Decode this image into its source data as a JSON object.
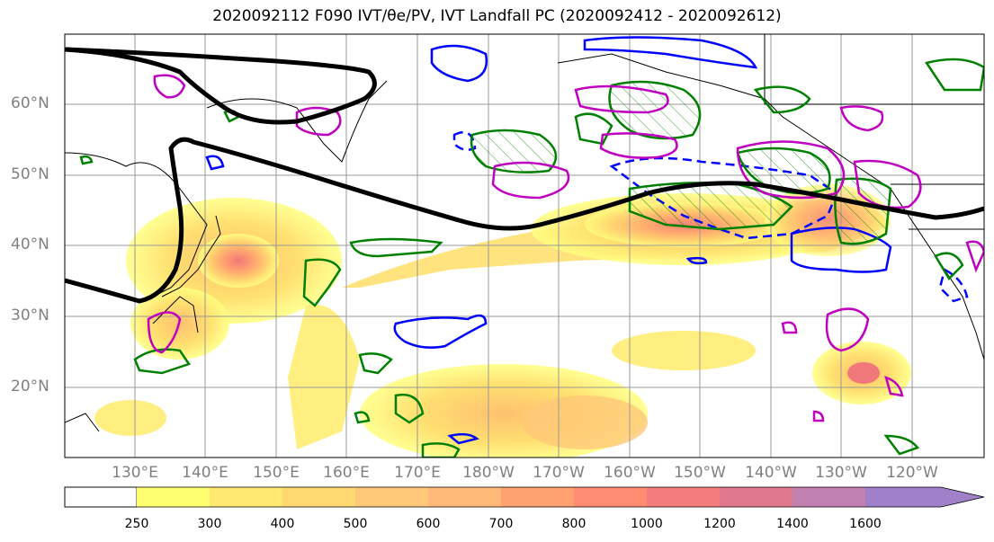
{
  "title": "2020092112 F090 IVT/θe/PV, IVT Landfall PC (2020092412 - 2020092612)",
  "lat_labels": [
    "60°N",
    "50°N",
    "40°N",
    "30°N",
    "20°N"
  ],
  "lon_labels": [
    "130°E",
    "140°E",
    "150°E",
    "160°E",
    "170°E",
    "180°W",
    "170°W",
    "160°W",
    "150°W",
    "140°W",
    "130°W",
    "120°W"
  ],
  "colorbar": {
    "labels": [
      "250",
      "300",
      "400",
      "500",
      "600",
      "700",
      "800",
      "1000",
      "1200",
      "1400",
      "1600"
    ],
    "colors": [
      "#ffff70",
      "#ffe870",
      "#ffd870",
      "#ffc878",
      "#ffb878",
      "#ffa070",
      "#ff8c70",
      "#f57c7c",
      "#e07890",
      "#c080b0",
      "#a080c8"
    ]
  },
  "legend_colors": {
    "jet_contour": "#000000",
    "theta_e": "#008000",
    "pv_pos": "#c000c0",
    "pv_neg": "#0000ff"
  }
}
